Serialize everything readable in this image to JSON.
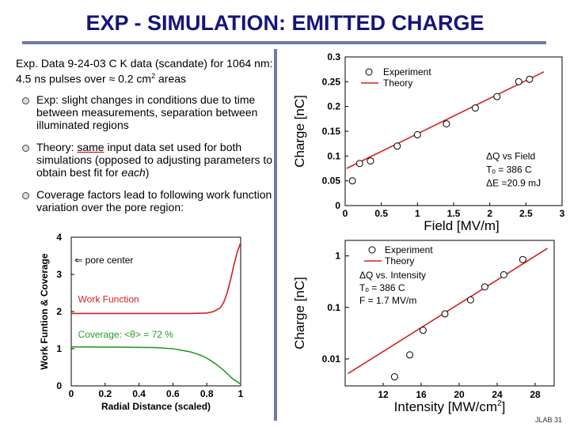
{
  "title": "EXP - SIMULATION:  EMITTED CHARGE",
  "intro": {
    "part1": "Exp. Data  9-24-03 C K data (scandate) for 1064 nm:  4.5 ns pulses over ≈ 0.2 cm",
    "sup": "2",
    "part2": " areas"
  },
  "bullets": {
    "b1": "Exp:  slight changes in conditions due to time between measurements, separation between illuminated regions",
    "b2_pre": "Theory:  ",
    "b2_under": "same",
    "b2_mid": " input data set used for both simulations (opposed to adjusting parameters to obtain best fit for ",
    "b2_em": "each",
    "b2_post": ")",
    "b3": "Coverage factors lead to following work function variation over the pore region:"
  },
  "footer": "JLAB 31",
  "colors": {
    "title": "#15157a",
    "rule": "#6f78a8",
    "red": "#d42020",
    "green": "#2a9a2a"
  },
  "chart_data": [
    {
      "type": "line",
      "ylabel": "Work Funtion & Coverage",
      "xlabel": "Radial Distance (scaled)",
      "xlim": [
        0,
        1
      ],
      "ylim": [
        0,
        4
      ],
      "xticks": [
        "0",
        "0.2",
        "0.4",
        "0.6",
        "0.8",
        "1"
      ],
      "yticks": [
        "0",
        "1",
        "2",
        "3",
        "4"
      ],
      "annotation": "⇐ pore center",
      "series": [
        {
          "name": "Work Function",
          "color": "#d42020",
          "x": [
            0,
            0.5,
            0.7,
            0.8,
            0.84,
            0.88,
            0.9,
            0.92,
            0.94,
            0.96,
            0.98,
            1.0
          ],
          "y": [
            1.95,
            1.95,
            1.95,
            1.96,
            2.0,
            2.1,
            2.25,
            2.5,
            2.85,
            3.25,
            3.6,
            3.85
          ]
        },
        {
          "name": "Coverage:  <θ> = 72 %",
          "color": "#2a9a2a",
          "x": [
            0,
            0.3,
            0.5,
            0.6,
            0.7,
            0.75,
            0.8,
            0.85,
            0.9,
            0.95,
            1.0
          ],
          "y": [
            1.05,
            1.04,
            1.03,
            1.0,
            0.92,
            0.85,
            0.75,
            0.6,
            0.42,
            0.2,
            0.05
          ]
        }
      ]
    },
    {
      "type": "scatter",
      "ylabel": "Charge [nC]",
      "xlabel": "Field [MV/m]",
      "xlim": [
        0,
        3
      ],
      "ylim": [
        0,
        0.3
      ],
      "xticks": [
        "0",
        "0.5",
        "1",
        "1.5",
        "2",
        "2.5",
        "3"
      ],
      "yticks": [
        "0",
        "0.05",
        "0.1",
        "0.15",
        "0.2",
        "0.25",
        "0.3"
      ],
      "legend": [
        "Experiment",
        "Theory"
      ],
      "annotations": [
        "ΔQ vs Field",
        "Tₒ = 386 C",
        "ΔE =20.9 mJ"
      ],
      "experiment": {
        "x": [
          0.1,
          0.2,
          0.35,
          0.72,
          1.0,
          1.4,
          1.8,
          2.1,
          2.4,
          2.55
        ],
        "y": [
          0.05,
          0.085,
          0.09,
          0.12,
          0.143,
          0.165,
          0.197,
          0.22,
          0.25,
          0.255
        ]
      },
      "theory": {
        "x": [
          0.02,
          2.75
        ],
        "y": [
          0.075,
          0.27
        ]
      }
    },
    {
      "type": "scatter",
      "ylabel": "Charge [nC]",
      "xlabel": "Intensity [MW/cm",
      "xlabel_sup": "2",
      "xlabel_end": "]",
      "xlim": [
        8,
        30
      ],
      "ylim_log": [
        0.003,
        2
      ],
      "xticks": [
        "12",
        "16",
        "20",
        "24",
        "28"
      ],
      "yticks": [
        "0.01",
        "0.1",
        "1"
      ],
      "legend": [
        "Experiment",
        "Theory"
      ],
      "annotations": [
        "ΔQ vs. Intensity",
        "Tₒ = 386 C",
        "F = 1.7 MV/m"
      ],
      "experiment": {
        "x": [
          13.2,
          14.8,
          16.2,
          18.5,
          21.2,
          22.7,
          24.7,
          26.7
        ],
        "y": [
          0.0045,
          0.012,
          0.036,
          0.075,
          0.14,
          0.25,
          0.43,
          0.85
        ]
      },
      "theory": {
        "x": [
          8.3,
          29.3
        ],
        "y": [
          0.0052,
          1.4
        ]
      }
    }
  ]
}
